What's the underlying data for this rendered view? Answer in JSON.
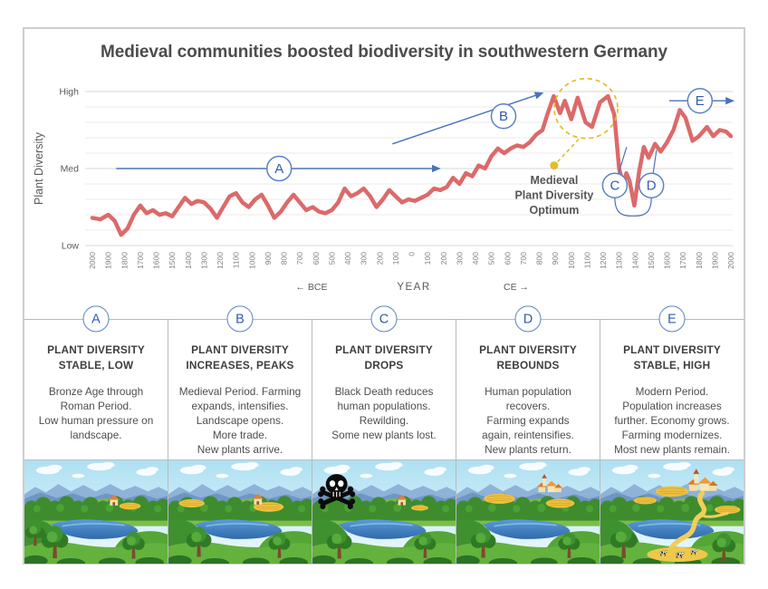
{
  "frame": {
    "title": "Medieval communities boosted biodiversity in southwestern Germany"
  },
  "chart": {
    "y_axis_title": "Plant Diversity",
    "y_tick_labels": [
      "High",
      "Med",
      "Low"
    ],
    "x_axis": {
      "bce_label": "← BCE",
      "year_label": "YEAR",
      "ce_label": "CE →"
    },
    "colors": {
      "series_line": "#dc6a6a",
      "annotation_blue": "#4a72b8",
      "annotation_letter": "#2f5cae",
      "annotation_circle_stroke": "#5b82c6",
      "optimum_yellow": "#e3bd2b",
      "gridline": "#ece9e9",
      "gridline_major": "#d9d5d5",
      "axis_text": "#5a5a5a",
      "tick_text": "#808080",
      "title_text": "#4c4c4c"
    }
  },
  "chart_data": {
    "type": "line",
    "title": "Medieval communities boosted biodiversity in southwestern Germany",
    "xlabel": "YEAR",
    "ylabel": "Plant Diversity",
    "ylim": [
      0,
      100
    ],
    "y_tick_positions": {
      "Low": 0,
      "Med": 50,
      "High": 100
    },
    "x_range_years": [
      -2000,
      2000
    ],
    "x_tick_labels": [
      "2000",
      "1900",
      "1800",
      "1700",
      "1600",
      "1500",
      "1400",
      "1300",
      "1200",
      "1100",
      "1000",
      "900",
      "800",
      "700",
      "600",
      "500",
      "400",
      "300",
      "200",
      "100",
      "0",
      "100",
      "200",
      "300",
      "400",
      "500",
      "600",
      "700",
      "800",
      "900",
      "1000",
      "1100",
      "1200",
      "1300",
      "1400",
      "1500",
      "1600",
      "1700",
      "1800",
      "1900",
      "2000"
    ],
    "series": [
      {
        "name": "Plant diversity",
        "x": [
          -2000,
          -1950,
          -1900,
          -1860,
          -1820,
          -1780,
          -1740,
          -1700,
          -1660,
          -1620,
          -1580,
          -1540,
          -1500,
          -1460,
          -1420,
          -1380,
          -1340,
          -1300,
          -1260,
          -1220,
          -1180,
          -1140,
          -1100,
          -1060,
          -1020,
          -980,
          -940,
          -900,
          -860,
          -820,
          -780,
          -740,
          -700,
          -660,
          -620,
          -580,
          -540,
          -500,
          -460,
          -420,
          -380,
          -340,
          -300,
          -260,
          -220,
          -180,
          -140,
          -100,
          -60,
          -20,
          20,
          60,
          100,
          140,
          180,
          220,
          260,
          300,
          340,
          380,
          420,
          460,
          500,
          540,
          580,
          620,
          660,
          700,
          740,
          780,
          820,
          850,
          890,
          930,
          960,
          1000,
          1040,
          1090,
          1130,
          1180,
          1230,
          1270,
          1300,
          1325,
          1345,
          1365,
          1395,
          1425,
          1455,
          1485,
          1525,
          1560,
          1600,
          1640,
          1680,
          1715,
          1760,
          1800,
          1850,
          1890,
          1930,
          1970,
          2000
        ],
        "y": [
          18,
          17,
          20,
          16,
          7,
          11,
          20,
          26,
          21,
          23,
          20,
          21,
          19,
          25,
          31,
          27,
          29,
          28,
          24,
          18,
          25,
          32,
          34,
          28,
          25,
          30,
          33,
          26,
          18,
          22,
          28,
          33,
          28,
          23,
          25,
          22,
          21,
          23,
          28,
          37,
          32,
          34,
          37,
          32,
          25,
          30,
          36,
          32,
          28,
          30,
          29,
          31,
          33,
          37,
          36,
          38,
          44,
          40,
          47,
          45,
          52,
          50,
          58,
          63,
          60,
          63,
          65,
          64,
          67,
          72,
          75,
          85,
          97,
          86,
          94,
          82,
          96,
          80,
          77,
          93,
          97,
          85,
          50,
          40,
          47,
          42,
          26,
          48,
          64,
          57,
          66,
          61,
          67,
          75,
          88,
          83,
          68,
          71,
          77,
          71,
          75,
          74,
          71
        ]
      }
    ],
    "annotations": [
      {
        "id": "A",
        "kind": "arrow",
        "from": [
          -1850,
          50
        ],
        "to": [
          175,
          50
        ],
        "label_at": [
          -830,
          50
        ]
      },
      {
        "id": "B",
        "kind": "arrow",
        "from": [
          -120,
          66
        ],
        "to": [
          820,
          99
        ],
        "label_at": [
          576,
          84
        ]
      },
      {
        "id": "C",
        "kind": "callout",
        "label_at": [
          1273,
          39
        ],
        "leader_to": [
          1347,
          64
        ]
      },
      {
        "id": "D",
        "kind": "callout",
        "label_at": [
          1502,
          39
        ],
        "leader_to": [
          1534,
          62
        ]
      },
      {
        "id": "E",
        "kind": "arrow",
        "from": [
          1614,
          94
        ],
        "to": [
          2015,
          94
        ],
        "label_at": [
          1806,
          94
        ]
      }
    ],
    "brace": {
      "between": [
        "C",
        "D"
      ],
      "dip_at": [
        1387,
        21
      ]
    },
    "optimum": {
      "label": "Medieval\nPlant Diversity\nOptimum",
      "circle_center": [
        1092,
        89
      ],
      "dot_at": [
        893,
        52
      ],
      "leader_from": [
        1046,
        69
      ],
      "text_at": [
        893,
        40
      ]
    }
  },
  "panels": [
    {
      "letter": "A",
      "title": "PLANT DIVERSITY\nSTABLE, LOW",
      "body": "Bronze Age through\nRoman Period.\nLow human pressure on\nlandscape."
    },
    {
      "letter": "B",
      "title": "PLANT DIVERSITY\nINCREASES, PEAKS",
      "body": "Medieval Period. Farming\nexpands, intensifies.\nLandscape opens.\nMore trade.\nNew plants arrive."
    },
    {
      "letter": "C",
      "title": "PLANT DIVERSITY\nDROPS",
      "body": "Black Death reduces\nhuman populations.\nRewilding.\nSome new plants lost."
    },
    {
      "letter": "D",
      "title": "PLANT DIVERSITY\nREBOUNDS",
      "body": "Human population\nrecovers.\nFarming expands\nagain, reintensifies.\nNew plants return."
    },
    {
      "letter": "E",
      "title": "PLANT DIVERSITY\nSTABLE, HIGH",
      "body": "Modern Period.\nPopulation increases\nfurther. Economy grows.\nFarming modernizes.\nMost new plants remain."
    }
  ]
}
